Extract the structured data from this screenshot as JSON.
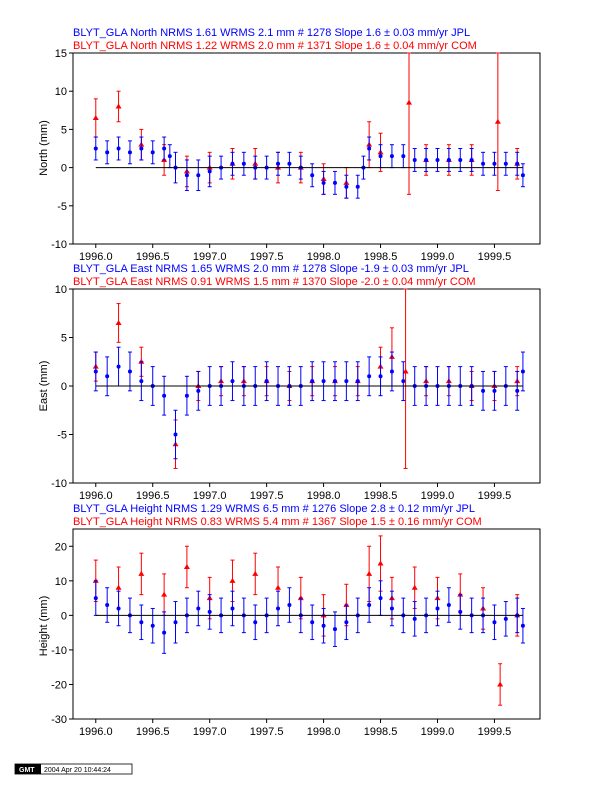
{
  "footer": {
    "logo_text": "GMT",
    "timestamp": "2004 Apr 20 10:44:24"
  },
  "colors": {
    "jpl": "#0000ff",
    "com": "#ff0000",
    "zero_line": "#000000"
  },
  "chart_data": [
    {
      "type": "scatter",
      "ylabel": "North (mm)",
      "xlim": [
        1995.8,
        1999.9
      ],
      "ylim": [
        -10,
        15
      ],
      "yticks": [
        -10,
        -5,
        0,
        5,
        10,
        15
      ],
      "xticks": [
        1996.0,
        1996.5,
        1997.0,
        1997.5,
        1998.0,
        1998.5,
        1999.0,
        1999.5
      ],
      "xtick_labels": [
        "1996.0",
        "1996.5",
        "1997.0",
        "1997.5",
        "1998.0",
        "1998.5",
        "1999.0",
        "1999.5"
      ],
      "legend": [
        "BLYT_GLA North NRMS 1.61 WRMS  2.1 mm # 1278 Slope    1.6 ±  0.03 mm/yr JPL",
        "BLYT_GLA North NRMS 1.22 WRMS  2.0 mm # 1371 Slope    1.6 ±  0.04 mm/yr COM"
      ],
      "series": [
        {
          "name": "JPL",
          "color": "#0000ff",
          "x": [
            1996.0,
            1996.1,
            1996.2,
            1996.3,
            1996.4,
            1996.5,
            1996.6,
            1996.65,
            1996.7,
            1996.8,
            1996.9,
            1997.0,
            1997.1,
            1997.2,
            1997.3,
            1997.4,
            1997.5,
            1997.6,
            1997.7,
            1997.8,
            1997.9,
            1998.0,
            1998.1,
            1998.2,
            1998.3,
            1998.35,
            1998.4,
            1998.5,
            1998.6,
            1998.7,
            1998.8,
            1998.9,
            1999.0,
            1999.1,
            1999.2,
            1999.3,
            1999.4,
            1999.5,
            1999.6,
            1999.7,
            1999.75
          ],
          "y": [
            2.5,
            2.0,
            2.5,
            2.0,
            2.5,
            2.0,
            2.5,
            1.5,
            0.0,
            -1.0,
            -1.0,
            -0.5,
            0.0,
            0.5,
            0.5,
            0.0,
            0.0,
            0.5,
            0.5,
            0.0,
            -1.0,
            -2.0,
            -2.0,
            -2.5,
            -2.5,
            0.0,
            2.5,
            1.5,
            1.5,
            1.5,
            1.0,
            1.0,
            1.0,
            1.0,
            1.0,
            1.0,
            0.5,
            0.5,
            0.5,
            0.5,
            -1.0
          ],
          "err": [
            1.5,
            1.5,
            1.5,
            1.5,
            1.5,
            1.5,
            1.5,
            1.5,
            2.0,
            2.0,
            2.0,
            2.0,
            1.5,
            1.5,
            1.5,
            1.5,
            1.5,
            1.5,
            1.5,
            1.5,
            1.5,
            1.5,
            1.5,
            1.5,
            1.5,
            1.5,
            1.5,
            1.5,
            1.5,
            1.5,
            1.5,
            1.5,
            1.5,
            1.5,
            1.5,
            1.5,
            1.5,
            1.5,
            1.5,
            1.5,
            1.5
          ]
        },
        {
          "name": "COM",
          "color": "#ff0000",
          "x": [
            1996.0,
            1996.2,
            1996.4,
            1996.6,
            1996.8,
            1997.0,
            1997.2,
            1997.4,
            1997.6,
            1997.8,
            1998.0,
            1998.2,
            1998.4,
            1998.5,
            1998.75,
            1998.9,
            1999.1,
            1999.3,
            1999.53,
            1999.7
          ],
          "y": [
            6.5,
            8.0,
            3.0,
            1.0,
            -0.5,
            0.0,
            0.5,
            0.5,
            0.0,
            0.0,
            -1.5,
            -2.0,
            3.0,
            2.0,
            8.5,
            1.0,
            1.0,
            1.0,
            6.0,
            0.5
          ],
          "err": [
            2.5,
            2.0,
            2.0,
            2.0,
            2.0,
            2.0,
            2.0,
            2.0,
            2.0,
            2.0,
            2.0,
            2.0,
            3.0,
            2.5,
            12.0,
            2.0,
            2.0,
            2.0,
            9.0,
            2.0
          ]
        }
      ]
    },
    {
      "type": "scatter",
      "ylabel": "East (mm)",
      "xlim": [
        1995.8,
        1999.9
      ],
      "ylim": [
        -10,
        10
      ],
      "yticks": [
        -10,
        -5,
        0,
        5,
        10
      ],
      "xticks": [
        1996.0,
        1996.5,
        1997.0,
        1997.5,
        1998.0,
        1998.5,
        1999.0,
        1999.5
      ],
      "xtick_labels": [
        "1996.0",
        "1996.5",
        "1997.0",
        "1997.5",
        "1998.0",
        "1998.5",
        "1999.0",
        "1999.5"
      ],
      "legend": [
        "BLYT_GLA East NRMS 1.65 WRMS  2.0 mm # 1278 Slope   -1.9 ±  0.03 mm/yr JPL",
        "BLYT_GLA East NRMS 0.91 WRMS  1.5 mm # 1370 Slope   -2.0 ±  0.04 mm/yr COM"
      ],
      "series": [
        {
          "name": "JPL",
          "color": "#0000ff",
          "x": [
            1996.0,
            1996.1,
            1996.2,
            1996.3,
            1996.4,
            1996.5,
            1996.6,
            1996.7,
            1996.8,
            1996.9,
            1997.0,
            1997.1,
            1997.2,
            1997.3,
            1997.4,
            1997.5,
            1997.6,
            1997.7,
            1997.8,
            1997.9,
            1998.0,
            1998.1,
            1998.2,
            1998.3,
            1998.4,
            1998.5,
            1998.6,
            1998.7,
            1998.8,
            1998.9,
            1999.0,
            1999.1,
            1999.2,
            1999.3,
            1999.4,
            1999.5,
            1999.6,
            1999.7,
            1999.75
          ],
          "y": [
            1.5,
            1.0,
            2.0,
            1.5,
            0.5,
            0.0,
            -1.0,
            -5.0,
            -1.0,
            -0.5,
            0.0,
            0.0,
            0.5,
            0.0,
            0.0,
            0.5,
            0.0,
            0.0,
            0.0,
            0.5,
            0.5,
            0.5,
            0.5,
            0.5,
            1.0,
            1.0,
            1.5,
            0.5,
            0.0,
            0.0,
            0.0,
            0.0,
            0.0,
            0.0,
            -0.5,
            -0.5,
            0.0,
            -0.5,
            1.5
          ],
          "err": [
            2.0,
            2.0,
            2.0,
            2.0,
            2.0,
            2.0,
            2.0,
            2.5,
            2.0,
            2.0,
            2.0,
            2.0,
            2.0,
            2.0,
            2.0,
            2.0,
            2.0,
            2.0,
            2.0,
            2.0,
            2.0,
            2.0,
            2.0,
            2.0,
            2.0,
            2.0,
            2.0,
            2.0,
            2.0,
            2.0,
            2.0,
            2.0,
            2.0,
            2.0,
            2.0,
            2.0,
            2.0,
            2.0,
            2.0
          ]
        },
        {
          "name": "COM",
          "color": "#ff0000",
          "x": [
            1996.0,
            1996.2,
            1996.4,
            1996.7,
            1996.9,
            1997.1,
            1997.3,
            1997.5,
            1997.7,
            1997.9,
            1998.1,
            1998.3,
            1998.5,
            1998.6,
            1998.72,
            1998.9,
            1999.1,
            1999.3,
            1999.5,
            1999.7
          ],
          "y": [
            2.0,
            6.5,
            2.5,
            -6.0,
            0.0,
            0.5,
            0.5,
            0.5,
            0.0,
            0.5,
            0.5,
            0.5,
            2.0,
            3.0,
            1.5,
            0.5,
            0.5,
            0.0,
            0.0,
            0.5
          ],
          "err": [
            1.5,
            2.0,
            1.5,
            2.5,
            1.5,
            1.5,
            1.5,
            1.5,
            1.5,
            1.5,
            1.5,
            1.5,
            2.0,
            3.0,
            10.0,
            1.5,
            1.5,
            1.5,
            1.5,
            1.5
          ]
        }
      ]
    },
    {
      "type": "scatter",
      "ylabel": "Height (mm)",
      "xlim": [
        1995.8,
        1999.9
      ],
      "ylim": [
        -30,
        25
      ],
      "yticks": [
        -30,
        -20,
        -10,
        0,
        10,
        20
      ],
      "xticks": [
        1996.0,
        1996.5,
        1997.0,
        1997.5,
        1998.0,
        1998.5,
        1999.0,
        1999.5
      ],
      "xtick_labels": [
        "1996.0",
        "1996.5",
        "1997.0",
        "1997.5",
        "1998.0",
        "1998.5",
        "1999.0",
        "1999.5"
      ],
      "legend": [
        "BLYT_GLA Height NRMS 1.29 WRMS  6.5 mm # 1276 Slope    2.8 ±  0.12 mm/yr JPL",
        "BLYT_GLA Height NRMS 0.83 WRMS  5.4 mm # 1367 Slope    1.5 ±  0.16 mm/yr COM"
      ],
      "series": [
        {
          "name": "JPL",
          "color": "#0000ff",
          "x": [
            1996.0,
            1996.1,
            1996.2,
            1996.3,
            1996.4,
            1996.5,
            1996.6,
            1996.7,
            1996.8,
            1996.9,
            1997.0,
            1997.1,
            1997.2,
            1997.3,
            1997.4,
            1997.5,
            1997.6,
            1997.7,
            1997.8,
            1997.9,
            1998.0,
            1998.1,
            1998.2,
            1998.3,
            1998.4,
            1998.5,
            1998.6,
            1998.7,
            1998.8,
            1998.9,
            1999.0,
            1999.1,
            1999.2,
            1999.3,
            1999.4,
            1999.5,
            1999.6,
            1999.7,
            1999.75
          ],
          "y": [
            5,
            3,
            2,
            0,
            -2,
            -3,
            -5,
            -2,
            0,
            2,
            1,
            0,
            2,
            0,
            -2,
            0,
            2,
            3,
            0,
            -2,
            -3,
            -4,
            -2,
            0,
            3,
            5,
            2,
            0,
            -1,
            0,
            2,
            3,
            1,
            0,
            0,
            -2,
            -1,
            0,
            -3
          ],
          "err": [
            5,
            5,
            5,
            5,
            5,
            5,
            6,
            6,
            5,
            5,
            5,
            5,
            5,
            5,
            5,
            5,
            5,
            5,
            5,
            5,
            5,
            5,
            5,
            5,
            5,
            5,
            5,
            5,
            5,
            5,
            5,
            5,
            5,
            5,
            5,
            5,
            5,
            5,
            5
          ]
        },
        {
          "name": "COM",
          "color": "#ff0000",
          "x": [
            1996.0,
            1996.2,
            1996.4,
            1996.6,
            1996.8,
            1997.0,
            1997.2,
            1997.4,
            1997.6,
            1997.8,
            1998.0,
            1998.2,
            1998.4,
            1998.5,
            1998.6,
            1998.8,
            1999.0,
            1999.2,
            1999.4,
            1999.55,
            1999.7
          ],
          "y": [
            10,
            8,
            12,
            6,
            14,
            5,
            10,
            12,
            8,
            5,
            0,
            3,
            12,
            15,
            5,
            8,
            5,
            6,
            2,
            -20,
            0
          ],
          "err": [
            6,
            6,
            6,
            6,
            6,
            6,
            6,
            6,
            6,
            6,
            6,
            6,
            8,
            8,
            6,
            6,
            6,
            6,
            6,
            6,
            6
          ]
        }
      ]
    }
  ]
}
